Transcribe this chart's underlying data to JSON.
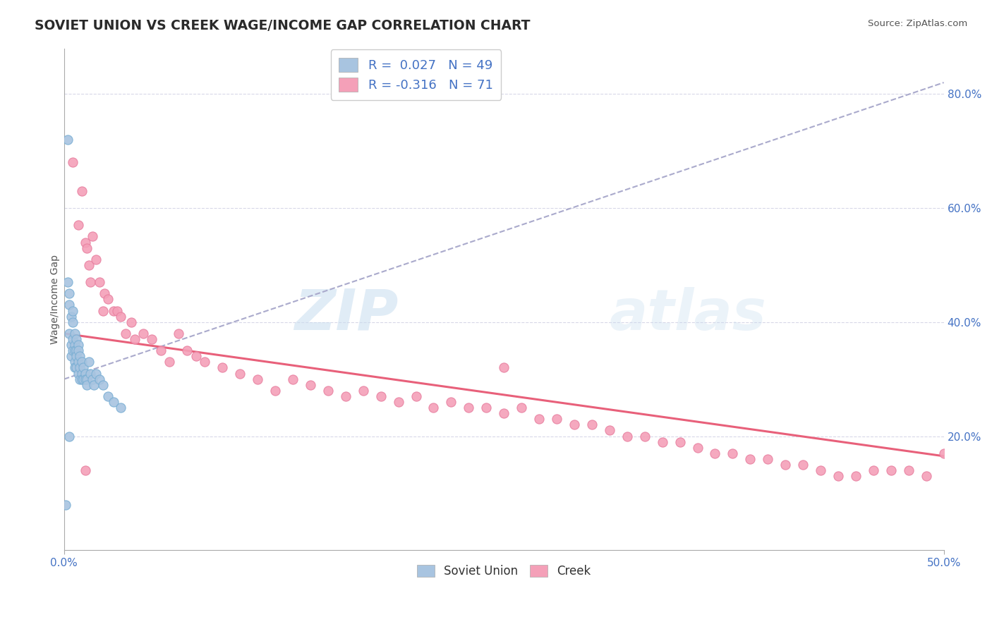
{
  "title": "SOVIET UNION VS CREEK WAGE/INCOME GAP CORRELATION CHART",
  "source_text": "Source: ZipAtlas.com",
  "ylabel": "Wage/Income Gap",
  "xlim": [
    0.0,
    0.5
  ],
  "ylim": [
    0.0,
    0.88
  ],
  "blue_color": "#a8c4e0",
  "blue_edge_color": "#7aafd4",
  "pink_color": "#f4a0b8",
  "pink_edge_color": "#e880a0",
  "dashed_line_color": "#aaaacc",
  "pink_line_color": "#e8607a",
  "label_color": "#4472c4",
  "grid_color": "#d8d8e8",
  "background_color": "#ffffff",
  "title_fontsize": 13.5,
  "tick_fontsize": 11,
  "watermark_zip": "ZIP",
  "watermark_atlas": "atlas",
  "soviet_x": [
    0.001,
    0.002,
    0.002,
    0.003,
    0.003,
    0.003,
    0.004,
    0.004,
    0.004,
    0.005,
    0.005,
    0.005,
    0.005,
    0.006,
    0.006,
    0.006,
    0.006,
    0.006,
    0.007,
    0.007,
    0.007,
    0.007,
    0.008,
    0.008,
    0.008,
    0.008,
    0.009,
    0.009,
    0.009,
    0.01,
    0.01,
    0.01,
    0.011,
    0.011,
    0.012,
    0.012,
    0.013,
    0.013,
    0.014,
    0.015,
    0.016,
    0.017,
    0.018,
    0.02,
    0.022,
    0.025,
    0.028,
    0.032,
    0.003
  ],
  "soviet_y": [
    0.08,
    0.72,
    0.47,
    0.43,
    0.45,
    0.38,
    0.41,
    0.36,
    0.34,
    0.42,
    0.4,
    0.37,
    0.35,
    0.38,
    0.36,
    0.35,
    0.33,
    0.32,
    0.37,
    0.35,
    0.34,
    0.32,
    0.36,
    0.35,
    0.33,
    0.31,
    0.34,
    0.32,
    0.3,
    0.33,
    0.31,
    0.3,
    0.32,
    0.3,
    0.31,
    0.3,
    0.3,
    0.29,
    0.33,
    0.31,
    0.3,
    0.29,
    0.31,
    0.3,
    0.29,
    0.27,
    0.26,
    0.25,
    0.2
  ],
  "creek_x": [
    0.005,
    0.008,
    0.01,
    0.012,
    0.013,
    0.014,
    0.015,
    0.016,
    0.018,
    0.02,
    0.022,
    0.023,
    0.025,
    0.028,
    0.03,
    0.032,
    0.035,
    0.038,
    0.04,
    0.045,
    0.05,
    0.055,
    0.06,
    0.065,
    0.07,
    0.075,
    0.08,
    0.09,
    0.1,
    0.11,
    0.12,
    0.13,
    0.14,
    0.15,
    0.16,
    0.17,
    0.18,
    0.19,
    0.2,
    0.21,
    0.22,
    0.23,
    0.24,
    0.25,
    0.26,
    0.27,
    0.28,
    0.29,
    0.3,
    0.31,
    0.32,
    0.33,
    0.34,
    0.35,
    0.36,
    0.37,
    0.38,
    0.39,
    0.4,
    0.41,
    0.42,
    0.43,
    0.44,
    0.45,
    0.46,
    0.47,
    0.48,
    0.49,
    0.5,
    0.012,
    0.25
  ],
  "creek_y": [
    0.68,
    0.57,
    0.63,
    0.54,
    0.53,
    0.5,
    0.47,
    0.55,
    0.51,
    0.47,
    0.42,
    0.45,
    0.44,
    0.42,
    0.42,
    0.41,
    0.38,
    0.4,
    0.37,
    0.38,
    0.37,
    0.35,
    0.33,
    0.38,
    0.35,
    0.34,
    0.33,
    0.32,
    0.31,
    0.3,
    0.28,
    0.3,
    0.29,
    0.28,
    0.27,
    0.28,
    0.27,
    0.26,
    0.27,
    0.25,
    0.26,
    0.25,
    0.25,
    0.24,
    0.25,
    0.23,
    0.23,
    0.22,
    0.22,
    0.21,
    0.2,
    0.2,
    0.19,
    0.19,
    0.18,
    0.17,
    0.17,
    0.16,
    0.16,
    0.15,
    0.15,
    0.14,
    0.13,
    0.13,
    0.14,
    0.14,
    0.14,
    0.13,
    0.17,
    0.14,
    0.32
  ],
  "trend_soviet_x0": 0.0,
  "trend_soviet_y0": 0.3,
  "trend_soviet_x1": 0.5,
  "trend_soviet_y1": 0.82,
  "trend_creek_x0": 0.0,
  "trend_creek_y0": 0.38,
  "trend_creek_x1": 0.5,
  "trend_creek_y1": 0.165
}
